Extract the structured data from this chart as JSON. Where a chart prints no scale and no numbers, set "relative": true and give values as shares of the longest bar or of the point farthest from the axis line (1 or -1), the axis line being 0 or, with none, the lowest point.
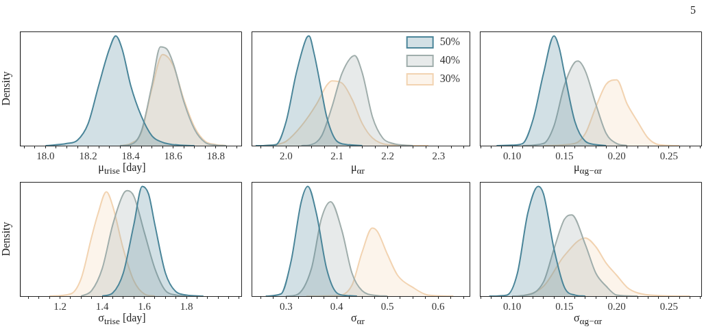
{
  "chart_data": [
    {
      "type": "area",
      "relative": true,
      "ylabel": "Density",
      "xlabel": "μ$_{trise}$ [day]",
      "xlim": [
        17.88,
        18.92
      ],
      "xticks": [
        {
          "value": 17.9,
          "label": null
        },
        {
          "value": 17.95,
          "label": null
        },
        {
          "value": 18.0,
          "label": "18.0"
        },
        {
          "value": 18.05,
          "label": null
        },
        {
          "value": 18.1,
          "label": null
        },
        {
          "value": 18.15,
          "label": null
        },
        {
          "value": 18.2,
          "label": "18.2"
        },
        {
          "value": 18.25,
          "label": null
        },
        {
          "value": 18.3,
          "label": null
        },
        {
          "value": 18.35,
          "label": null
        },
        {
          "value": 18.4,
          "label": "18.4"
        },
        {
          "value": 18.45,
          "label": null
        },
        {
          "value": 18.5,
          "label": null
        },
        {
          "value": 18.55,
          "label": null
        },
        {
          "value": 18.6,
          "label": "18.6"
        },
        {
          "value": 18.65,
          "label": null
        },
        {
          "value": 18.7,
          "label": null
        },
        {
          "value": 18.75,
          "label": null
        },
        {
          "value": 18.8,
          "label": "18.8"
        },
        {
          "value": 18.85,
          "label": null
        },
        {
          "value": 18.9,
          "label": null
        }
      ],
      "series": [
        {
          "color": "#4a8599",
          "x": [
            18.0,
            18.1,
            18.15,
            18.2,
            18.25,
            18.3,
            18.33,
            18.36,
            18.4,
            18.45,
            18.5,
            18.55,
            18.6,
            18.7
          ],
          "values": [
            0,
            0.02,
            0.05,
            0.2,
            0.55,
            0.88,
            1,
            0.88,
            0.55,
            0.27,
            0.09,
            0.03,
            0.01,
            0
          ]
        },
        {
          "color": "#9fadab",
          "x": [
            18.35,
            18.4,
            18.45,
            18.5,
            18.54,
            18.57,
            18.6,
            18.65,
            18.7,
            18.75,
            18.8,
            18.85
          ],
          "values": [
            0,
            0.01,
            0.13,
            0.55,
            0.9,
            0.88,
            0.75,
            0.4,
            0.15,
            0.03,
            0.005,
            0
          ]
        },
        {
          "color": "#f2d3b1",
          "x": [
            18.35,
            18.4,
            18.45,
            18.5,
            18.55,
            18.6,
            18.65,
            18.7,
            18.75,
            18.8,
            18.85
          ],
          "values": [
            0,
            0.02,
            0.12,
            0.52,
            0.83,
            0.73,
            0.42,
            0.17,
            0.04,
            0.01,
            0
          ]
        }
      ]
    },
    {
      "type": "area",
      "relative": true,
      "xlabel": "μ$_{αr}$",
      "xlim": [
        1.932,
        2.361
      ],
      "legend": "top right",
      "xticks": [
        {
          "value": 1.95,
          "label": null
        },
        {
          "value": 1.975,
          "label": null
        },
        {
          "value": 2.0,
          "label": "2.0"
        },
        {
          "value": 2.025,
          "label": null
        },
        {
          "value": 2.05,
          "label": null
        },
        {
          "value": 2.075,
          "label": null
        },
        {
          "value": 2.1,
          "label": "2.1"
        },
        {
          "value": 2.125,
          "label": null
        },
        {
          "value": 2.15,
          "label": null
        },
        {
          "value": 2.175,
          "label": null
        },
        {
          "value": 2.2,
          "label": "2.2"
        },
        {
          "value": 2.225,
          "label": null
        },
        {
          "value": 2.25,
          "label": null
        },
        {
          "value": 2.275,
          "label": null
        },
        {
          "value": 2.3,
          "label": "2.3"
        },
        {
          "value": 2.325,
          "label": null
        },
        {
          "value": 2.35,
          "label": null
        }
      ],
      "series": [
        {
          "name": "50%",
          "color": "#4a8599",
          "x": [
            1.94,
            1.98,
            2.0,
            2.02,
            2.04,
            2.045,
            2.055,
            2.07,
            2.08,
            2.1,
            2.12,
            2.15
          ],
          "values": [
            0,
            0.01,
            0.22,
            0.66,
            0.98,
            1,
            0.84,
            0.49,
            0.26,
            0.04,
            0.01,
            0
          ]
        },
        {
          "name": "40%",
          "color": "#9fadab",
          "x": [
            2.03,
            2.05,
            2.07,
            2.09,
            2.11,
            2.135,
            2.15,
            2.17,
            2.19,
            2.21,
            2.25
          ],
          "values": [
            0,
            0.01,
            0.09,
            0.35,
            0.66,
            0.82,
            0.66,
            0.26,
            0.07,
            0.02,
            0
          ]
        },
        {
          "name": "30%",
          "color": "#f2d3b1",
          "x": [
            1.95,
            1.98,
            2.0,
            2.03,
            2.06,
            2.08,
            2.09,
            2.11,
            2.13,
            2.15,
            2.17,
            2.2,
            2.28
          ],
          "values": [
            0,
            0.01,
            0.04,
            0.18,
            0.38,
            0.55,
            0.59,
            0.57,
            0.42,
            0.2,
            0.07,
            0.01,
            0
          ]
        }
      ]
    },
    {
      "type": "area",
      "relative": true,
      "xlabel": "μ$_{αg−αr}$",
      "xlim": [
        0.069,
        0.281
      ],
      "annotations": [
        "5"
      ],
      "xticks": [
        {
          "value": 0.07,
          "label": null
        },
        {
          "value": 0.08,
          "label": null
        },
        {
          "value": 0.09,
          "label": null
        },
        {
          "value": 0.1,
          "label": "0.10"
        },
        {
          "value": 0.11,
          "label": null
        },
        {
          "value": 0.12,
          "label": null
        },
        {
          "value": 0.13,
          "label": null
        },
        {
          "value": 0.14,
          "label": null
        },
        {
          "value": 0.15,
          "label": "0.15"
        },
        {
          "value": 0.16,
          "label": null
        },
        {
          "value": 0.17,
          "label": null
        },
        {
          "value": 0.18,
          "label": null
        },
        {
          "value": 0.19,
          "label": null
        },
        {
          "value": 0.2,
          "label": "0.20"
        },
        {
          "value": 0.21,
          "label": null
        },
        {
          "value": 0.22,
          "label": null
        },
        {
          "value": 0.23,
          "label": null
        },
        {
          "value": 0.24,
          "label": null
        },
        {
          "value": 0.25,
          "label": "0.25"
        },
        {
          "value": 0.26,
          "label": null
        },
        {
          "value": 0.27,
          "label": null
        },
        {
          "value": 0.28,
          "label": null
        }
      ],
      "series": [
        {
          "color": "#4a8599",
          "x": [
            0.085,
            0.1,
            0.11,
            0.12,
            0.13,
            0.14,
            0.145,
            0.15,
            0.16,
            0.17,
            0.18,
            0.19
          ],
          "values": [
            0,
            0.005,
            0.02,
            0.24,
            0.66,
            1,
            0.89,
            0.66,
            0.22,
            0.04,
            0.01,
            0
          ]
        },
        {
          "color": "#9fadab",
          "x": [
            0.11,
            0.13,
            0.14,
            0.15,
            0.16,
            0.163,
            0.17,
            0.18,
            0.19,
            0.2,
            0.21
          ],
          "values": [
            0,
            0.02,
            0.18,
            0.55,
            0.76,
            0.77,
            0.68,
            0.38,
            0.11,
            0.02,
            0
          ]
        },
        {
          "color": "#f2d3b1",
          "x": [
            0.13,
            0.16,
            0.17,
            0.18,
            0.19,
            0.2,
            0.21,
            0.22,
            0.23,
            0.24,
            0.26
          ],
          "values": [
            0,
            0.02,
            0.11,
            0.35,
            0.56,
            0.6,
            0.38,
            0.22,
            0.07,
            0.01,
            0
          ]
        }
      ]
    },
    {
      "type": "area",
      "relative": true,
      "ylabel": "Density",
      "xlabel": "σ$_{trise}$ [day]",
      "xlim": [
        1.01,
        2.06
      ],
      "xticks": [
        {
          "value": 1.05,
          "label": null
        },
        {
          "value": 1.1,
          "label": null
        },
        {
          "value": 1.15,
          "label": null
        },
        {
          "value": 1.2,
          "label": "1.2"
        },
        {
          "value": 1.25,
          "label": null
        },
        {
          "value": 1.3,
          "label": null
        },
        {
          "value": 1.35,
          "label": null
        },
        {
          "value": 1.4,
          "label": "1.4"
        },
        {
          "value": 1.45,
          "label": null
        },
        {
          "value": 1.5,
          "label": null
        },
        {
          "value": 1.55,
          "label": null
        },
        {
          "value": 1.6,
          "label": "1.6"
        },
        {
          "value": 1.65,
          "label": null
        },
        {
          "value": 1.7,
          "label": null
        },
        {
          "value": 1.75,
          "label": null
        },
        {
          "value": 1.8,
          "label": "1.8"
        },
        {
          "value": 1.85,
          "label": null
        },
        {
          "value": 1.9,
          "label": null
        },
        {
          "value": 1.95,
          "label": null
        },
        {
          "value": 2.0,
          "label": null
        },
        {
          "value": 2.05,
          "label": null
        }
      ],
      "series": [
        {
          "color": "#4a8599",
          "x": [
            1.4,
            1.45,
            1.5,
            1.55,
            1.59,
            1.62,
            1.65,
            1.7,
            1.75,
            1.8,
            1.88
          ],
          "values": [
            0,
            0.03,
            0.21,
            0.65,
            1,
            0.93,
            0.65,
            0.21,
            0.04,
            0.01,
            0
          ]
        },
        {
          "color": "#9fadab",
          "x": [
            1.3,
            1.35,
            1.4,
            1.45,
            1.5,
            1.52,
            1.55,
            1.6,
            1.65,
            1.7,
            1.75,
            1.8
          ],
          "values": [
            0,
            0.05,
            0.25,
            0.65,
            0.93,
            0.96,
            0.91,
            0.58,
            0.25,
            0.05,
            0.01,
            0
          ]
        },
        {
          "color": "#f2d3b1",
          "x": [
            1.15,
            1.25,
            1.3,
            1.35,
            1.38,
            1.42,
            1.45,
            1.5,
            1.55,
            1.6,
            1.65
          ],
          "values": [
            0,
            0.02,
            0.16,
            0.54,
            0.75,
            0.95,
            0.82,
            0.43,
            0.14,
            0.02,
            0
          ]
        }
      ]
    },
    {
      "type": "area",
      "relative": true,
      "xlabel": "σ$_{αr}$",
      "xlim": [
        0.232,
        0.662
      ],
      "xticks": [
        {
          "value": 0.25,
          "label": null
        },
        {
          "value": 0.275,
          "label": null
        },
        {
          "value": 0.3,
          "label": "0.3"
        },
        {
          "value": 0.325,
          "label": null
        },
        {
          "value": 0.35,
          "label": null
        },
        {
          "value": 0.375,
          "label": null
        },
        {
          "value": 0.4,
          "label": "0.4"
        },
        {
          "value": 0.425,
          "label": null
        },
        {
          "value": 0.45,
          "label": null
        },
        {
          "value": 0.475,
          "label": null
        },
        {
          "value": 0.5,
          "label": "0.5"
        },
        {
          "value": 0.525,
          "label": null
        },
        {
          "value": 0.55,
          "label": null
        },
        {
          "value": 0.575,
          "label": null
        },
        {
          "value": 0.6,
          "label": "0.6"
        },
        {
          "value": 0.625,
          "label": null
        },
        {
          "value": 0.65,
          "label": null
        }
      ],
      "series": [
        {
          "color": "#4a8599",
          "x": [
            0.26,
            0.29,
            0.31,
            0.33,
            0.343,
            0.36,
            0.38,
            0.4,
            0.42,
            0.44
          ],
          "values": [
            0,
            0.02,
            0.32,
            0.86,
            1,
            0.75,
            0.25,
            0.03,
            0.005,
            0
          ]
        },
        {
          "color": "#9fadab",
          "x": [
            0.3,
            0.32,
            0.35,
            0.37,
            0.388,
            0.41,
            0.43,
            0.45,
            0.48,
            0.5
          ],
          "values": [
            0,
            0.01,
            0.25,
            0.71,
            0.86,
            0.6,
            0.21,
            0.05,
            0.005,
            0
          ]
        },
        {
          "color": "#f2d3b1",
          "x": [
            0.34,
            0.4,
            0.43,
            0.45,
            0.47,
            0.48,
            0.5,
            0.52,
            0.55,
            0.58,
            0.63
          ],
          "values": [
            0,
            0.005,
            0.1,
            0.4,
            0.62,
            0.59,
            0.38,
            0.19,
            0.08,
            0.01,
            0
          ]
        }
      ]
    },
    {
      "type": "area",
      "relative": true,
      "xlabel": "σ$_{αg−αr}$",
      "xlim": [
        0.069,
        0.281
      ],
      "xticks": [
        {
          "value": 0.07,
          "label": null
        },
        {
          "value": 0.08,
          "label": null
        },
        {
          "value": 0.09,
          "label": null
        },
        {
          "value": 0.1,
          "label": "0.10"
        },
        {
          "value": 0.11,
          "label": null
        },
        {
          "value": 0.12,
          "label": null
        },
        {
          "value": 0.13,
          "label": null
        },
        {
          "value": 0.14,
          "label": null
        },
        {
          "value": 0.15,
          "label": "0.15"
        },
        {
          "value": 0.16,
          "label": null
        },
        {
          "value": 0.17,
          "label": null
        },
        {
          "value": 0.18,
          "label": null
        },
        {
          "value": 0.19,
          "label": null
        },
        {
          "value": 0.2,
          "label": "0.20"
        },
        {
          "value": 0.21,
          "label": null
        },
        {
          "value": 0.22,
          "label": null
        },
        {
          "value": 0.23,
          "label": null
        },
        {
          "value": 0.24,
          "label": null
        },
        {
          "value": 0.25,
          "label": "0.25"
        },
        {
          "value": 0.26,
          "label": null
        },
        {
          "value": 0.27,
          "label": null
        },
        {
          "value": 0.28,
          "label": null
        }
      ],
      "series": [
        {
          "color": "#4a8599",
          "x": [
            0.078,
            0.095,
            0.105,
            0.115,
            0.125,
            0.13,
            0.14,
            0.15,
            0.16,
            0.17
          ],
          "values": [
            0,
            0.01,
            0.21,
            0.76,
            1,
            0.93,
            0.43,
            0.08,
            0.01,
            0
          ]
        },
        {
          "color": "#9fadab",
          "x": [
            0.1,
            0.11,
            0.13,
            0.14,
            0.15,
            0.157,
            0.17,
            0.18,
            0.19,
            0.2,
            0.22
          ],
          "values": [
            0,
            0.005,
            0.13,
            0.43,
            0.7,
            0.74,
            0.47,
            0.21,
            0.09,
            0.01,
            0
          ]
        },
        {
          "color": "#f2d3b1",
          "x": [
            0.1,
            0.11,
            0.13,
            0.15,
            0.17,
            0.18,
            0.19,
            0.2,
            0.21,
            0.22,
            0.24,
            0.27
          ],
          "values": [
            0,
            0.005,
            0.09,
            0.37,
            0.53,
            0.45,
            0.3,
            0.19,
            0.08,
            0.03,
            0.005,
            0
          ]
        }
      ]
    }
  ]
}
